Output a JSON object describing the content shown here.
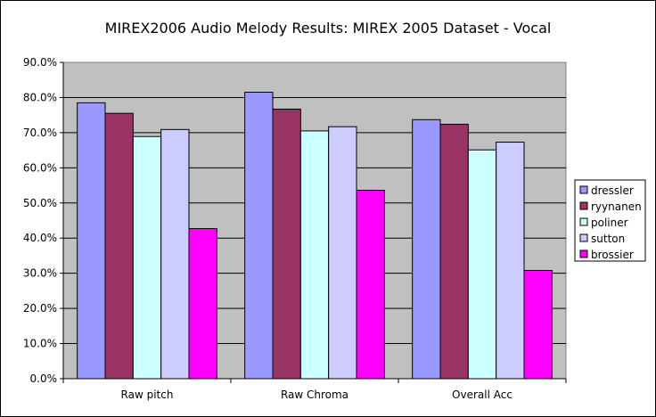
{
  "chart_data": {
    "type": "bar",
    "title": "MIREX2006 Audio Melody Results: MIREX 2005 Dataset - Vocal",
    "xlabel": "",
    "ylabel": "",
    "categories": [
      "Raw pitch",
      "Raw Chroma",
      "Overall Acc"
    ],
    "ylim": [
      0,
      90
    ],
    "ytick_step": 10,
    "y_tick_labels": [
      "0.0%",
      "10.0%",
      "20.0%",
      "30.0%",
      "40.0%",
      "50.0%",
      "60.0%",
      "70.0%",
      "80.0%",
      "90.0%"
    ],
    "grid": true,
    "legend_position": "right",
    "plot_background": "#c0c0c0",
    "series": [
      {
        "name": "dressler",
        "color": "#9999ff",
        "values": [
          78.5,
          81.5,
          73.7
        ]
      },
      {
        "name": "ryynanen",
        "color": "#993366",
        "values": [
          75.5,
          76.7,
          72.4
        ]
      },
      {
        "name": "poliner",
        "color": "#ccffff",
        "values": [
          68.9,
          70.5,
          65.1
        ]
      },
      {
        "name": "sutton",
        "color": "#ccccff",
        "values": [
          70.9,
          71.7,
          67.3
        ]
      },
      {
        "name": "brossier",
        "color": "#ff00ff",
        "values": [
          42.7,
          53.6,
          30.8
        ]
      }
    ]
  }
}
